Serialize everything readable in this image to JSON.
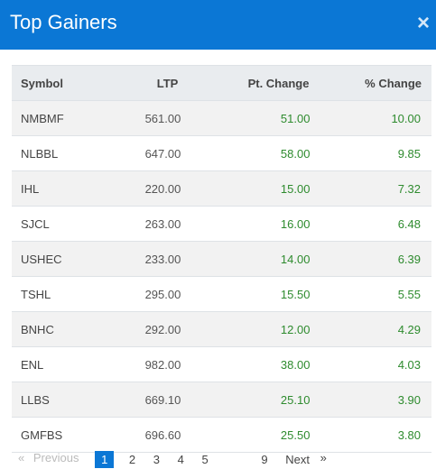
{
  "header": {
    "title": "Top Gainers",
    "close_label": "×"
  },
  "table": {
    "columns": [
      "Symbol",
      "LTP",
      "Pt. Change",
      "% Change"
    ],
    "rows": [
      {
        "symbol": "NMBMF",
        "ltp": "561.00",
        "pt_change": "51.00",
        "pct_change": "10.00"
      },
      {
        "symbol": "NLBBL",
        "ltp": "647.00",
        "pt_change": "58.00",
        "pct_change": "9.85"
      },
      {
        "symbol": "IHL",
        "ltp": "220.00",
        "pt_change": "15.00",
        "pct_change": "7.32"
      },
      {
        "symbol": "SJCL",
        "ltp": "263.00",
        "pt_change": "16.00",
        "pct_change": "6.48"
      },
      {
        "symbol": "USHEC",
        "ltp": "233.00",
        "pt_change": "14.00",
        "pct_change": "6.39"
      },
      {
        "symbol": "TSHL",
        "ltp": "295.00",
        "pt_change": "15.50",
        "pct_change": "5.55"
      },
      {
        "symbol": "BNHC",
        "ltp": "292.00",
        "pt_change": "12.00",
        "pct_change": "4.29"
      },
      {
        "symbol": "ENL",
        "ltp": "982.00",
        "pt_change": "38.00",
        "pct_change": "4.03"
      },
      {
        "symbol": "LLBS",
        "ltp": "669.10",
        "pt_change": "25.10",
        "pct_change": "3.90"
      },
      {
        "symbol": "GMFBS",
        "ltp": "696.60",
        "pt_change": "25.50",
        "pct_change": "3.80"
      }
    ]
  },
  "pagination": {
    "first": "«",
    "previous": "Previous",
    "pages": [
      "1",
      "2",
      "3",
      "4",
      "5",
      "9"
    ],
    "active_page": "1",
    "next": "Next",
    "last": "»"
  },
  "colors": {
    "header_bg": "#0b77d5",
    "positive": "#2e8b2e",
    "active_page": "#0b77d5"
  }
}
